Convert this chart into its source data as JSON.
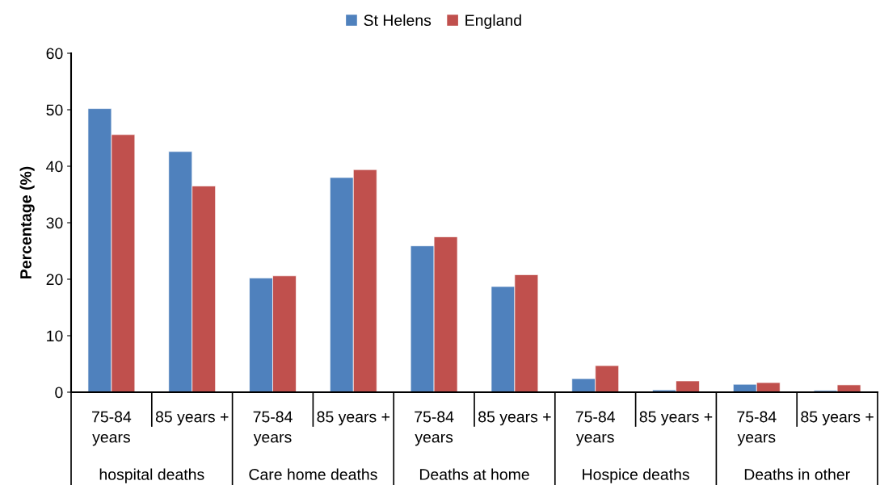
{
  "chart_data": {
    "type": "bar",
    "ylabel": "Percentage (%)",
    "categories": [
      "75-84\nyears",
      "85 years +",
      "75-84\nyears",
      "85 years +",
      "75-84\nyears",
      "85 years +",
      "75-84\nyears",
      "85 years +",
      "75-84\nyears",
      "85 years +"
    ],
    "series": [
      {
        "name": "St Helens",
        "color": "#4f81bd",
        "values": [
          50.2,
          42.6,
          20.2,
          38.0,
          25.9,
          18.7,
          2.4,
          0.4,
          1.4,
          0.3
        ]
      },
      {
        "name": "England",
        "color": "#c0504d",
        "values": [
          45.6,
          36.5,
          20.6,
          39.4,
          27.5,
          20.8,
          4.7,
          2.0,
          1.7,
          1.3
        ]
      }
    ],
    "annotations": [
      "hospital deaths",
      "Care home deaths",
      "Deaths at home",
      "Hospice deaths",
      "Deaths in other"
    ],
    "ylim": [
      0,
      60
    ],
    "yticks": [
      0,
      10,
      20,
      30,
      40,
      50,
      60
    ],
    "grid": false,
    "legend": "top"
  }
}
